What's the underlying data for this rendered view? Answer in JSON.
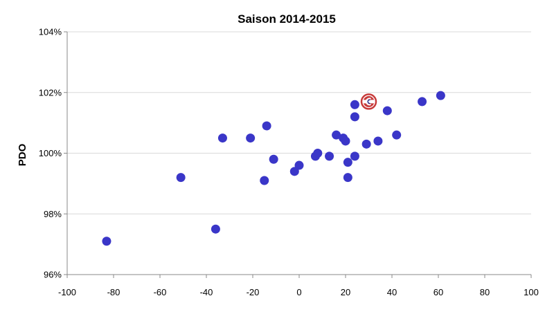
{
  "chart_data": {
    "type": "scatter",
    "title": "Saison 2014-2015",
    "xlabel": "",
    "ylabel": "PDO",
    "xlim": [
      -100,
      100
    ],
    "ylim": [
      96,
      104
    ],
    "x_ticks": [
      "-100",
      "-80",
      "-60",
      "-40",
      "-20",
      "0",
      "20",
      "40",
      "60",
      "80",
      "100"
    ],
    "y_ticks": [
      "96%",
      "98%",
      "100%",
      "102%",
      "104%"
    ],
    "grid": "horizontal",
    "legend": "none",
    "colors": {
      "points": "#3a36c8",
      "highlight_ring": "#c73a3a",
      "grid": "#d9d9d9",
      "axis": "#888888"
    },
    "highlight_icon": "canadiens-logo-icon",
    "points": [
      {
        "x": -83,
        "y": 97.1
      },
      {
        "x": -51,
        "y": 99.2
      },
      {
        "x": -36,
        "y": 97.5
      },
      {
        "x": -33,
        "y": 100.5
      },
      {
        "x": -21,
        "y": 100.5
      },
      {
        "x": -14,
        "y": 100.9
      },
      {
        "x": -15,
        "y": 99.1
      },
      {
        "x": -11,
        "y": 99.8
      },
      {
        "x": -2,
        "y": 99.4
      },
      {
        "x": 0,
        "y": 99.6
      },
      {
        "x": 7,
        "y": 99.9
      },
      {
        "x": 8,
        "y": 100.0
      },
      {
        "x": 13,
        "y": 99.9
      },
      {
        "x": 16,
        "y": 100.6
      },
      {
        "x": 19,
        "y": 100.5
      },
      {
        "x": 20,
        "y": 100.4
      },
      {
        "x": 21,
        "y": 99.7
      },
      {
        "x": 21,
        "y": 99.2
      },
      {
        "x": 24,
        "y": 99.9
      },
      {
        "x": 24,
        "y": 101.2
      },
      {
        "x": 24,
        "y": 101.6
      },
      {
        "x": 29,
        "y": 100.3
      },
      {
        "x": 34,
        "y": 100.4
      },
      {
        "x": 38,
        "y": 101.4
      },
      {
        "x": 42,
        "y": 100.6
      },
      {
        "x": 53,
        "y": 101.7
      },
      {
        "x": 61,
        "y": 101.9
      },
      {
        "x": 30,
        "y": 101.7,
        "highlight": true
      }
    ]
  }
}
